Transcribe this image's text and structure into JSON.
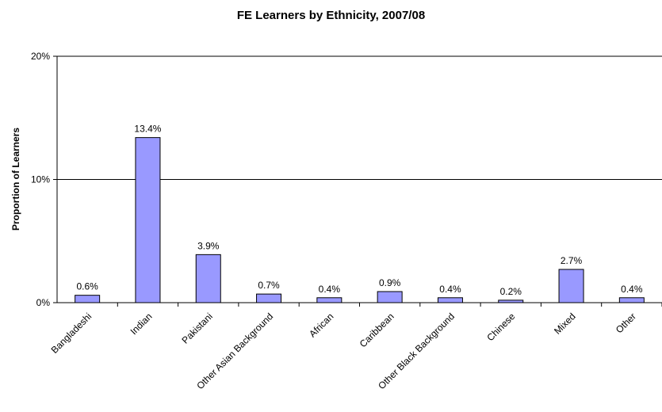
{
  "chart_data": {
    "type": "bar",
    "title": "FE Learners by Ethnicity, 2007/08",
    "xlabel": "",
    "ylabel": "Proportion of Learners",
    "ylim": [
      0,
      20
    ],
    "yticks": [
      "0%",
      "10%",
      "20%"
    ],
    "categories": [
      "Bangladeshi",
      "Indian",
      "Pakistani",
      "Other Asian Background",
      "African",
      "Caribbean",
      "Other Black Background",
      "Chinese",
      "Mixed",
      "Other"
    ],
    "values": [
      0.6,
      13.4,
      3.9,
      0.7,
      0.4,
      0.9,
      0.4,
      0.2,
      2.7,
      0.4
    ],
    "data_labels": [
      "0.6%",
      "13.4%",
      "3.9%",
      "0.7%",
      "0.4%",
      "0.9%",
      "0.4%",
      "0.2%",
      "2.7%",
      "0.4%"
    ],
    "grid": true,
    "legend": "none",
    "bar_color": "#9999ff"
  }
}
